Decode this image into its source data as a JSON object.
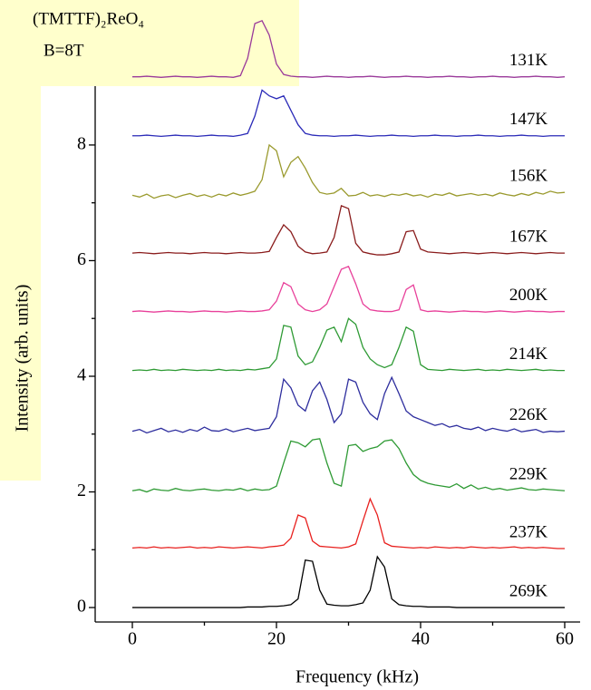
{
  "chart_data": {
    "type": "line",
    "title": "(TMTTF)₂ReO₄",
    "subtitle": "B=8T",
    "x_label": "Frequency (kHz)",
    "y_label": "Intensity (arb. units)",
    "xlim": [
      -5,
      62
    ],
    "ylim": [
      -0.25,
      10.5
    ],
    "xticks": [
      0,
      20,
      40,
      60
    ],
    "yticks": [
      0,
      2,
      4,
      6,
      8
    ],
    "xminorticks": [
      10,
      30,
      50
    ],
    "yminorticks": [
      1,
      3,
      5,
      7
    ],
    "x": [
      0,
      1,
      2,
      3,
      4,
      5,
      6,
      7,
      8,
      9,
      10,
      11,
      12,
      13,
      14,
      15,
      16,
      17,
      18,
      19,
      20,
      21,
      22,
      23,
      24,
      25,
      26,
      27,
      28,
      29,
      30,
      31,
      32,
      33,
      34,
      35,
      36,
      37,
      38,
      39,
      40,
      41,
      42,
      43,
      44,
      45,
      46,
      47,
      48,
      49,
      50,
      51,
      52,
      53,
      54,
      55,
      56,
      57,
      58,
      59,
      60
    ],
    "series": [
      {
        "name": "269K",
        "color": "#000000",
        "values": [
          0,
          0,
          0,
          0,
          0,
          0,
          0,
          0,
          0,
          0,
          0,
          0,
          0,
          0,
          0,
          0,
          0.01,
          0.01,
          0.01,
          0.02,
          0.02,
          0.03,
          0.05,
          0.15,
          0.82,
          0.8,
          0.3,
          0.06,
          0.04,
          0.03,
          0.03,
          0.05,
          0.08,
          0.3,
          0.88,
          0.7,
          0.15,
          0.05,
          0.03,
          0.02,
          0.02,
          0.01,
          0.01,
          0.01,
          0.01,
          0,
          0,
          0,
          0,
          0,
          0,
          0,
          0,
          0,
          0,
          0,
          0,
          0,
          0,
          0,
          0
        ]
      },
      {
        "name": "237K",
        "color": "#e8201e",
        "values": [
          1.03,
          1.04,
          1.03,
          1.05,
          1.03,
          1.04,
          1.03,
          1.04,
          1.05,
          1.03,
          1.04,
          1.03,
          1.05,
          1.04,
          1.03,
          1.04,
          1.05,
          1.04,
          1.03,
          1.05,
          1.06,
          1.08,
          1.2,
          1.6,
          1.55,
          1.15,
          1.06,
          1.05,
          1.04,
          1.03,
          1.05,
          1.1,
          1.5,
          1.88,
          1.6,
          1.12,
          1.06,
          1.05,
          1.04,
          1.03,
          1.04,
          1.03,
          1.05,
          1.04,
          1.03,
          1.04,
          1.03,
          1.05,
          1.04,
          1.03,
          1.04,
          1.03,
          1.04,
          1.05,
          1.03,
          1.04,
          1.03,
          1.04,
          1.03,
          1.02,
          1.02
        ]
      },
      {
        "name": "229K",
        "color": "#2e9a34",
        "values": [
          2.02,
          2.04,
          2.0,
          2.05,
          2.03,
          2.02,
          2.06,
          2.03,
          2.02,
          2.04,
          2.05,
          2.03,
          2.02,
          2.04,
          2.03,
          2.06,
          2.02,
          2.05,
          2.03,
          2.04,
          2.1,
          2.5,
          2.88,
          2.85,
          2.78,
          2.9,
          2.92,
          2.5,
          2.15,
          2.1,
          2.8,
          2.82,
          2.7,
          2.75,
          2.78,
          2.88,
          2.9,
          2.75,
          2.5,
          2.3,
          2.2,
          2.15,
          2.12,
          2.1,
          2.08,
          2.14,
          2.06,
          2.12,
          2.05,
          2.08,
          2.04,
          2.06,
          2.03,
          2.05,
          2.07,
          2.04,
          2.03,
          2.05,
          2.04,
          2.03,
          2.02
        ]
      },
      {
        "name": "226K",
        "color": "#2e2e9e",
        "values": [
          3.05,
          3.08,
          3.02,
          3.06,
          3.1,
          3.04,
          3.07,
          3.03,
          3.08,
          3.05,
          3.12,
          3.06,
          3.05,
          3.09,
          3.04,
          3.07,
          3.1,
          3.06,
          3.08,
          3.1,
          3.3,
          3.95,
          3.8,
          3.5,
          3.4,
          3.75,
          3.9,
          3.6,
          3.2,
          3.35,
          3.95,
          3.9,
          3.55,
          3.35,
          3.25,
          3.7,
          3.98,
          3.7,
          3.4,
          3.3,
          3.25,
          3.2,
          3.15,
          3.18,
          3.12,
          3.15,
          3.1,
          3.08,
          3.12,
          3.06,
          3.1,
          3.07,
          3.05,
          3.09,
          3.04,
          3.06,
          3.08,
          3.03,
          3.05,
          3.04,
          3.05
        ]
      },
      {
        "name": "214K",
        "color": "#2e9a34",
        "values": [
          4.1,
          4.11,
          4.1,
          4.12,
          4.1,
          4.11,
          4.1,
          4.12,
          4.11,
          4.1,
          4.11,
          4.1,
          4.12,
          4.1,
          4.11,
          4.1,
          4.12,
          4.11,
          4.13,
          4.15,
          4.3,
          4.88,
          4.85,
          4.35,
          4.2,
          4.25,
          4.5,
          4.8,
          4.85,
          4.6,
          5.0,
          4.9,
          4.5,
          4.3,
          4.2,
          4.15,
          4.2,
          4.5,
          4.85,
          4.78,
          4.2,
          4.12,
          4.11,
          4.1,
          4.12,
          4.11,
          4.1,
          4.11,
          4.12,
          4.1,
          4.11,
          4.1,
          4.12,
          4.11,
          4.1,
          4.11,
          4.12,
          4.1,
          4.11,
          4.1,
          4.1
        ]
      },
      {
        "name": "200K",
        "color": "#e8409a",
        "values": [
          5.12,
          5.13,
          5.12,
          5.11,
          5.12,
          5.13,
          5.12,
          5.12,
          5.11,
          5.12,
          5.13,
          5.12,
          5.12,
          5.11,
          5.12,
          5.13,
          5.12,
          5.12,
          5.13,
          5.15,
          5.3,
          5.62,
          5.55,
          5.25,
          5.15,
          5.12,
          5.15,
          5.25,
          5.55,
          5.85,
          5.9,
          5.6,
          5.25,
          5.15,
          5.13,
          5.12,
          5.12,
          5.15,
          5.5,
          5.58,
          5.15,
          5.12,
          5.13,
          5.12,
          5.11,
          5.12,
          5.13,
          5.12,
          5.12,
          5.11,
          5.12,
          5.13,
          5.12,
          5.11,
          5.12,
          5.13,
          5.12,
          5.12,
          5.11,
          5.12,
          5.12
        ]
      },
      {
        "name": "167K",
        "color": "#8a1c1c",
        "values": [
          6.13,
          6.14,
          6.13,
          6.12,
          6.13,
          6.14,
          6.13,
          6.13,
          6.12,
          6.13,
          6.14,
          6.13,
          6.13,
          6.12,
          6.13,
          6.14,
          6.13,
          6.13,
          6.14,
          6.16,
          6.4,
          6.62,
          6.5,
          6.25,
          6.15,
          6.12,
          6.13,
          6.15,
          6.4,
          6.95,
          6.9,
          6.3,
          6.15,
          6.12,
          6.1,
          6.1,
          6.12,
          6.15,
          6.5,
          6.52,
          6.2,
          6.15,
          6.14,
          6.13,
          6.12,
          6.13,
          6.14,
          6.13,
          6.12,
          6.13,
          6.14,
          6.13,
          6.12,
          6.13,
          6.14,
          6.13,
          6.12,
          6.13,
          6.14,
          6.13,
          6.13
        ]
      },
      {
        "name": "156K",
        "color": "#9a9a2e",
        "values": [
          7.13,
          7.1,
          7.15,
          7.08,
          7.12,
          7.14,
          7.09,
          7.13,
          7.16,
          7.11,
          7.14,
          7.1,
          7.15,
          7.12,
          7.17,
          7.13,
          7.16,
          7.2,
          7.4,
          8.0,
          7.9,
          7.45,
          7.7,
          7.8,
          7.6,
          7.35,
          7.18,
          7.15,
          7.17,
          7.25,
          7.12,
          7.13,
          7.18,
          7.12,
          7.14,
          7.11,
          7.15,
          7.13,
          7.16,
          7.12,
          7.14,
          7.1,
          7.15,
          7.13,
          7.17,
          7.12,
          7.14,
          7.16,
          7.13,
          7.15,
          7.12,
          7.17,
          7.14,
          7.12,
          7.16,
          7.13,
          7.18,
          7.15,
          7.2,
          7.17,
          7.18
        ]
      },
      {
        "name": "147K",
        "color": "#2a2ab8",
        "values": [
          8.16,
          8.16,
          8.17,
          8.16,
          8.15,
          8.16,
          8.17,
          8.16,
          8.16,
          8.15,
          8.16,
          8.17,
          8.16,
          8.16,
          8.15,
          8.17,
          8.2,
          8.5,
          8.95,
          8.85,
          8.8,
          8.85,
          8.6,
          8.35,
          8.2,
          8.17,
          8.16,
          8.16,
          8.15,
          8.16,
          8.16,
          8.17,
          8.16,
          8.15,
          8.16,
          8.16,
          8.17,
          8.16,
          8.16,
          8.15,
          8.16,
          8.16,
          8.17,
          8.16,
          8.16,
          8.15,
          8.16,
          8.16,
          8.17,
          8.16,
          8.16,
          8.15,
          8.16,
          8.16,
          8.17,
          8.16,
          8.16,
          8.15,
          8.16,
          8.16,
          8.16
        ]
      },
      {
        "name": "131K",
        "color": "#9a3a9a",
        "values": [
          9.18,
          9.18,
          9.19,
          9.18,
          9.17,
          9.18,
          9.19,
          9.18,
          9.18,
          9.17,
          9.18,
          9.19,
          9.18,
          9.18,
          9.17,
          9.2,
          9.5,
          10.1,
          10.15,
          9.9,
          9.4,
          9.22,
          9.19,
          9.18,
          9.18,
          9.17,
          9.18,
          9.19,
          9.18,
          9.18,
          9.17,
          9.18,
          9.18,
          9.19,
          9.18,
          9.17,
          9.18,
          9.18,
          9.19,
          9.18,
          9.18,
          9.17,
          9.18,
          9.18,
          9.19,
          9.18,
          9.18,
          9.17,
          9.18,
          9.18,
          9.19,
          9.18,
          9.18,
          9.17,
          9.18,
          9.18,
          9.19,
          9.18,
          9.18,
          9.17,
          9.18
        ]
      }
    ]
  }
}
